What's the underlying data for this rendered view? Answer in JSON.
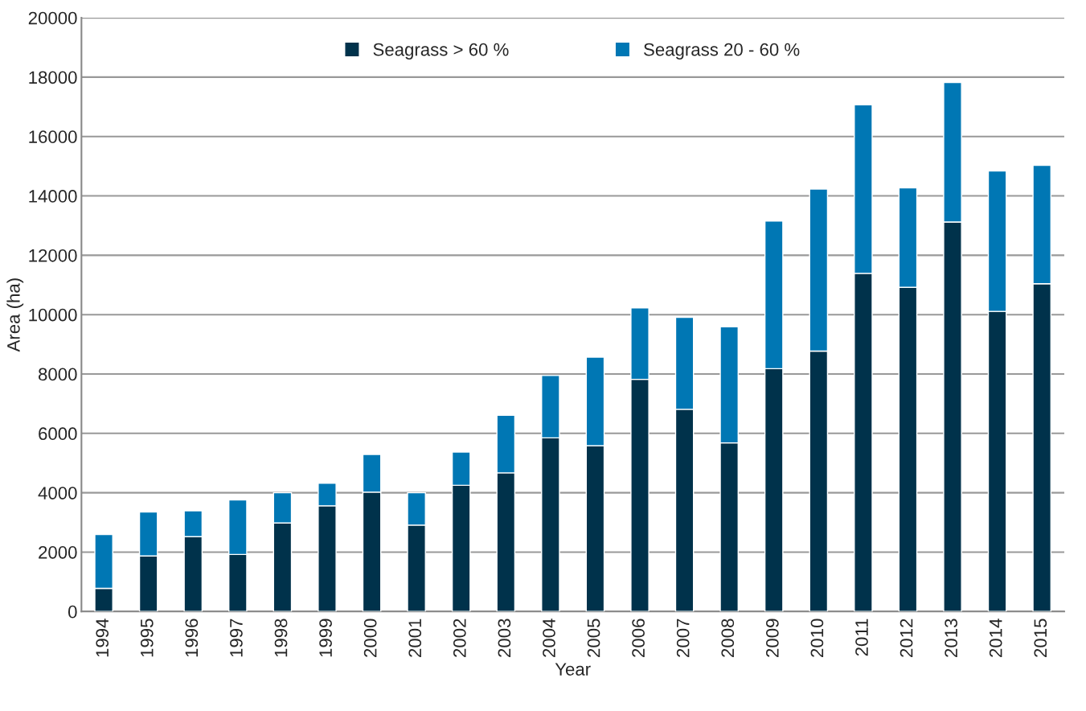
{
  "chart_data": {
    "type": "bar",
    "stacked": true,
    "xlabel": "Year",
    "ylabel": "Area (ha)",
    "categories": [
      "1994",
      "1995",
      "1996",
      "1997",
      "1998",
      "1999",
      "2000",
      "2001",
      "2002",
      "2003",
      "2004",
      "2005",
      "2006",
      "2007",
      "2008",
      "2009",
      "2010",
      "2011",
      "2012",
      "2013",
      "2014",
      "2015"
    ],
    "series": [
      {
        "name": "Seagrass > 60 %",
        "color": "#00324b",
        "values": [
          780,
          1870,
          2520,
          1920,
          2980,
          3560,
          4020,
          2910,
          4250,
          4670,
          5850,
          5580,
          7820,
          6810,
          5680,
          8180,
          8770,
          11390,
          10920,
          13120,
          10110,
          11040
        ]
      },
      {
        "name": "Seagrass 20 - 60 %",
        "color": "#0077b4",
        "values": [
          1810,
          1480,
          870,
          1840,
          1020,
          760,
          1270,
          1090,
          1120,
          1940,
          2100,
          2990,
          2410,
          3100,
          3910,
          4970,
          5460,
          5680,
          3350,
          4700,
          4730,
          3990
        ]
      }
    ],
    "ylim": [
      0,
      20000
    ],
    "yticks": [
      0,
      2000,
      4000,
      6000,
      8000,
      10000,
      12000,
      14000,
      16000,
      18000,
      20000
    ],
    "grid": "y",
    "legend": "top"
  }
}
